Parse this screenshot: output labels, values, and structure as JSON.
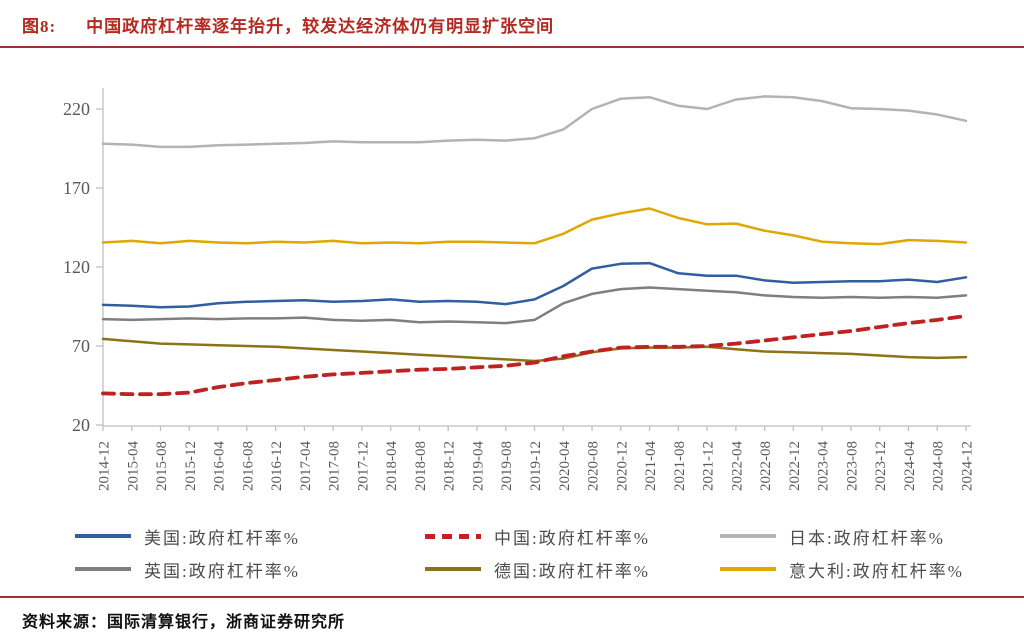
{
  "header": {
    "title_prefix": "图8:",
    "title": "中国政府杠杆率逐年抬升，较发达经济体仍有明显扩张空间"
  },
  "footer": {
    "source": "资料来源：国际清算银行，浙商证券研究所"
  },
  "colors": {
    "title": "#b22a22",
    "rule": "#9e3232",
    "axis": "#bfbfbf",
    "tick_label": "#595959",
    "legend_text": "#4d4d4d"
  },
  "chart_data": {
    "type": "line",
    "title": "图8: 中国政府杠杆率逐年抬升，较发达经济体仍有明显扩张空间",
    "xlabel": "",
    "ylabel": "政府杠杆率 %",
    "ylim": [
      20,
      235
    ],
    "y_ticks": [
      20,
      70,
      120,
      170,
      220
    ],
    "grid": false,
    "legend_position": "bottom",
    "x": [
      "2014-12",
      "2015-04",
      "2015-08",
      "2015-12",
      "2016-04",
      "2016-08",
      "2016-12",
      "2017-04",
      "2017-08",
      "2017-12",
      "2018-04",
      "2018-08",
      "2018-12",
      "2019-04",
      "2019-08",
      "2019-12",
      "2020-04",
      "2020-08",
      "2020-12",
      "2021-04",
      "2021-08",
      "2021-12",
      "2022-04",
      "2022-08",
      "2022-12",
      "2023-04",
      "2023-08",
      "2023-12",
      "2024-04",
      "2024-08",
      "2024-12"
    ],
    "series": [
      {
        "key": "us",
        "name": "美国:政府杠杆率%",
        "color": "#305e9e",
        "dashed": false,
        "values": [
          96,
          95.5,
          94.5,
          95,
          97,
          98,
          98.5,
          99,
          98,
          98.5,
          99.5,
          98,
          98.5,
          98,
          96.5,
          99.5,
          108,
          119,
          122,
          122.5,
          116,
          114.5,
          114.5,
          111.5,
          110,
          110.5,
          111,
          111,
          112,
          110.5,
          113.5
        ]
      },
      {
        "key": "china",
        "name": "中国:政府杠杆率%",
        "color": "#bf2222",
        "dashed": true,
        "values": [
          40,
          39.5,
          39.5,
          40.5,
          44,
          46.5,
          48.5,
          50.5,
          52,
          53,
          54,
          55,
          55.5,
          56.5,
          57.5,
          59.5,
          63.5,
          66.5,
          69,
          69.5,
          69.5,
          70,
          71.5,
          73.5,
          75.5,
          77.5,
          79.5,
          82,
          84.5,
          86.5,
          89
        ]
      },
      {
        "key": "japan",
        "name": "日本:政府杠杆率%",
        "color": "#b3b3b3",
        "dashed": false,
        "values": [
          198,
          197.5,
          196,
          196,
          197,
          197.5,
          198,
          198.5,
          199.5,
          199,
          199,
          199,
          200,
          200.5,
          200,
          201.5,
          207,
          220,
          226.5,
          227.5,
          222,
          220,
          226,
          228,
          227.5,
          225,
          220.5,
          220,
          219,
          216.5,
          212.5
        ]
      },
      {
        "key": "uk",
        "name": "英国:政府杠杆率%",
        "color": "#7f7f7f",
        "dashed": false,
        "values": [
          87,
          86.5,
          87,
          87.5,
          87,
          87.5,
          87.5,
          88,
          86.5,
          86,
          86.5,
          85,
          85.5,
          85,
          84.5,
          86.5,
          97,
          103,
          106,
          107,
          106,
          105,
          104,
          102,
          101,
          100.5,
          101,
          100.5,
          101,
          100.5,
          102
        ]
      },
      {
        "key": "germany",
        "name": "德国:政府杠杆率%",
        "color": "#8b7417",
        "dashed": false,
        "values": [
          74.5,
          73,
          71.5,
          71,
          70.5,
          70,
          69.5,
          68.5,
          67.5,
          66.5,
          65.5,
          64.5,
          63.5,
          62.5,
          61.5,
          60.5,
          62,
          66,
          68.5,
          69,
          69,
          69.5,
          68,
          66.5,
          66,
          65.5,
          65,
          64,
          63,
          62.5,
          63
        ]
      },
      {
        "key": "italy",
        "name": "意大利:政府杠杆率%",
        "color": "#dfa700",
        "dashed": false,
        "values": [
          135.5,
          136.5,
          135,
          136.5,
          135.5,
          135,
          136,
          135.5,
          136.5,
          135,
          135.5,
          135,
          136,
          136,
          135.5,
          135,
          141,
          150,
          154,
          157,
          151,
          147,
          147.5,
          143,
          140,
          136,
          135,
          134.5,
          137,
          136.5,
          135.5
        ]
      }
    ]
  }
}
